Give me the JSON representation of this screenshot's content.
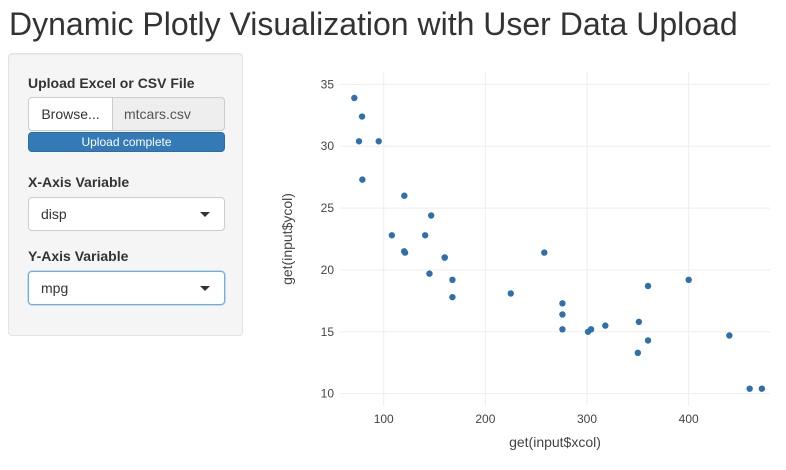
{
  "page": {
    "title": "Dynamic Plotly Visualization with User Data Upload"
  },
  "sidebar": {
    "upload": {
      "label": "Upload Excel or CSV File",
      "browse_label": "Browse...",
      "file_name": "mtcars.csv",
      "progress_text": "Upload complete",
      "progress": 1.0
    },
    "x_select": {
      "label": "X-Axis Variable",
      "value": "disp"
    },
    "y_select": {
      "label": "Y-Axis Variable",
      "value": "mpg"
    }
  },
  "colors": {
    "accent": "#337ab7",
    "marker": "#2f6fad",
    "grid": "#eeeeee"
  },
  "icons": {
    "dropdown": "chevron-down-icon"
  },
  "chart_data": {
    "type": "scatter",
    "xlabel": "get(input$xcol)",
    "ylabel": "get(input$ycol)",
    "xlim": [
      57,
      480
    ],
    "ylim": [
      9,
      36
    ],
    "x_ticks": [
      100,
      200,
      300,
      400
    ],
    "y_ticks": [
      10,
      15,
      20,
      25,
      30,
      35
    ],
    "grid": true,
    "series": [
      {
        "x": [
          160,
          160,
          108,
          258,
          360,
          225,
          360,
          146.7,
          140.8,
          167.6,
          167.6,
          275.8,
          275.8,
          275.8,
          472,
          460,
          440,
          78.7,
          75.7,
          71.1,
          120.1,
          318,
          304,
          350,
          400,
          79,
          120.3,
          95.1,
          351,
          145,
          301,
          121
        ],
        "y": [
          21,
          21,
          22.8,
          21.4,
          18.7,
          18.1,
          14.3,
          24.4,
          22.8,
          19.2,
          17.8,
          16.4,
          17.3,
          15.2,
          10.4,
          10.4,
          14.7,
          32.4,
          30.4,
          33.9,
          21.5,
          15.5,
          15.2,
          13.3,
          19.2,
          27.3,
          26,
          30.4,
          15.8,
          19.7,
          15,
          21.4
        ]
      }
    ]
  }
}
